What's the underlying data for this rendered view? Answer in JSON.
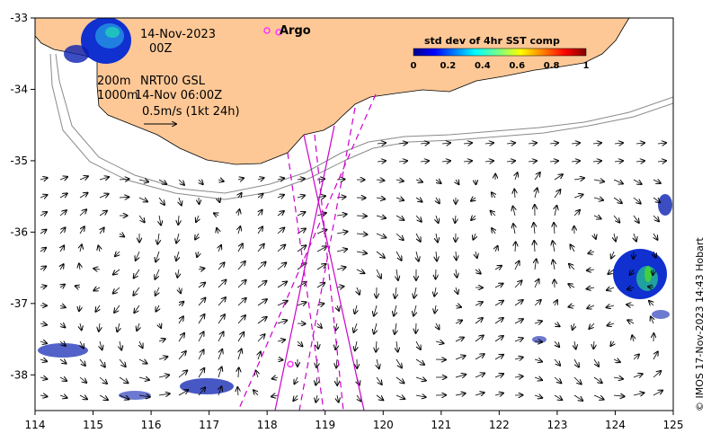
{
  "map": {
    "date_label": "14-Nov-2023",
    "hour_label": "00Z",
    "iso200_label": "200m",
    "iso1000_label": "1000m",
    "product_label": "NRT00 GSL",
    "analysis_time_label": "14-Nov 06:00Z",
    "scale_label": "0.5m/s (1kt 24h)",
    "argo_label": "Argo",
    "credit": "© IMOS 17-Nov-2023 14:43 Hobart",
    "land_color": "#fdc896",
    "track_color": "#cc00cc",
    "argo_color": "#ff33ff"
  },
  "colorbar": {
    "title": "std dev of 4hr SST comp",
    "ticks": [
      "0",
      "0.2",
      "0.4",
      "0.6",
      "0.8",
      "1"
    ]
  },
  "axes": {
    "lon_ticks": [
      "114",
      "115",
      "116",
      "117",
      "118",
      "119",
      "120",
      "121",
      "122",
      "123",
      "124",
      "125"
    ],
    "lat_ticks": [
      "-33",
      "-34",
      "-35",
      "-36",
      "-37",
      "-38"
    ],
    "lon_range": [
      114,
      125
    ],
    "lat_range": [
      -38.5,
      -33
    ]
  },
  "argo_floats": [
    {
      "lon": 118.2,
      "lat": -33.2
    },
    {
      "lon": 118.4,
      "lat": -37.85
    }
  ]
}
